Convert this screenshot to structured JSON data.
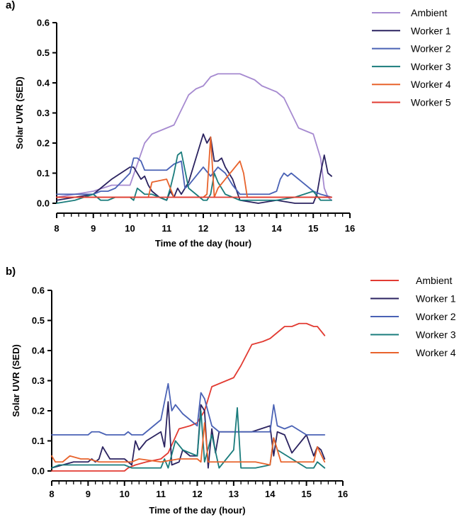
{
  "chart_data": [
    {
      "type": "line",
      "panel_label": "a)",
      "xlabel": "Time of the day (hour)",
      "ylabel": "Solar UVR (SED)",
      "xlim": [
        8,
        16
      ],
      "ylim": [
        0,
        0.6
      ],
      "x_ticks": [
        "8",
        "9",
        "10",
        "11",
        "12",
        "13",
        "14",
        "15",
        "16"
      ],
      "y_ticks": [
        "0.0",
        "0.1",
        "0.2",
        "0.3",
        "0.4",
        "0.5",
        "0.6"
      ],
      "legend_position": "top-right",
      "series": [
        {
          "name": "Ambient",
          "color": "#a68ad0",
          "x": [
            8.0,
            9.0,
            9.5,
            10.0,
            10.2,
            10.4,
            10.6,
            10.8,
            11.0,
            11.2,
            11.4,
            11.6,
            11.8,
            12.0,
            12.2,
            12.4,
            12.6,
            12.8,
            13.0,
            13.2,
            13.4,
            13.6,
            13.8,
            14.0,
            14.2,
            14.4,
            14.6,
            14.8,
            15.0,
            15.2,
            15.3,
            15.4,
            15.5
          ],
          "y": [
            0.02,
            0.04,
            0.06,
            0.06,
            0.13,
            0.2,
            0.23,
            0.24,
            0.25,
            0.26,
            0.31,
            0.36,
            0.38,
            0.39,
            0.42,
            0.43,
            0.43,
            0.43,
            0.43,
            0.42,
            0.41,
            0.39,
            0.38,
            0.37,
            0.35,
            0.3,
            0.25,
            0.24,
            0.23,
            0.15,
            0.05,
            0.02,
            0.01
          ]
        },
        {
          "name": "Worker 1",
          "color": "#2b2360",
          "x": [
            8.0,
            8.5,
            9.0,
            9.3,
            9.5,
            10.0,
            10.1,
            10.2,
            10.3,
            10.4,
            10.5,
            10.6,
            10.8,
            11.0,
            11.1,
            11.2,
            11.3,
            11.4,
            11.6,
            11.8,
            12.0,
            12.1,
            12.2,
            12.3,
            12.4,
            12.5,
            12.6,
            12.8,
            13.0,
            13.5,
            14.0,
            14.5,
            15.0,
            15.1,
            15.2,
            15.3,
            15.4,
            15.5
          ],
          "y": [
            0.01,
            0.02,
            0.03,
            0.06,
            0.08,
            0.12,
            0.12,
            0.1,
            0.08,
            0.09,
            0.06,
            0.04,
            0.02,
            0.01,
            0.04,
            0.02,
            0.05,
            0.03,
            0.07,
            0.15,
            0.23,
            0.2,
            0.22,
            0.14,
            0.14,
            0.15,
            0.12,
            0.08,
            0.01,
            0.0,
            0.01,
            0.0,
            0.0,
            0.03,
            0.1,
            0.16,
            0.1,
            0.09
          ]
        },
        {
          "name": "Worker 2",
          "color": "#4a62b5",
          "x": [
            8.0,
            9.0,
            9.2,
            9.4,
            9.6,
            10.0,
            10.1,
            10.2,
            10.3,
            10.4,
            10.6,
            11.0,
            11.2,
            11.4,
            11.5,
            11.6,
            12.0,
            12.2,
            12.4,
            12.6,
            12.8,
            13.0,
            13.2,
            13.5,
            13.8,
            14.0,
            14.1,
            14.2,
            14.3,
            14.4,
            14.6,
            15.0,
            15.2,
            15.5
          ],
          "y": [
            0.03,
            0.03,
            0.04,
            0.04,
            0.05,
            0.1,
            0.15,
            0.15,
            0.14,
            0.11,
            0.11,
            0.11,
            0.13,
            0.14,
            0.05,
            0.06,
            0.12,
            0.09,
            0.12,
            0.1,
            0.06,
            0.03,
            0.03,
            0.03,
            0.03,
            0.04,
            0.08,
            0.1,
            0.09,
            0.1,
            0.08,
            0.04,
            0.03,
            0.02
          ]
        },
        {
          "name": "Worker 3",
          "color": "#1a7c7c",
          "x": [
            8.0,
            8.5,
            9.0,
            9.1,
            9.2,
            9.4,
            9.6,
            10.0,
            10.1,
            10.2,
            10.3,
            10.4,
            10.6,
            11.0,
            11.1,
            11.2,
            11.3,
            11.4,
            11.6,
            12.0,
            12.1,
            12.2,
            12.3,
            12.4,
            12.6,
            12.8,
            13.0,
            13.5,
            14.0,
            14.5,
            15.0,
            15.2,
            15.5
          ],
          "y": [
            0.0,
            0.01,
            0.03,
            0.02,
            0.01,
            0.01,
            0.02,
            0.02,
            0.01,
            0.05,
            0.04,
            0.03,
            0.03,
            0.01,
            0.05,
            0.1,
            0.16,
            0.17,
            0.05,
            0.01,
            0.01,
            0.03,
            0.1,
            0.07,
            0.03,
            0.02,
            0.01,
            0.01,
            0.01,
            0.02,
            0.04,
            0.01,
            0.01
          ]
        },
        {
          "name": "Worker 4",
          "color": "#e8632c",
          "x": [
            8.0,
            10.5,
            10.6,
            11.0,
            11.1,
            11.2,
            12.0,
            12.1,
            12.2,
            12.3,
            12.4,
            13.0,
            13.1,
            13.2,
            15.0,
            15.5
          ],
          "y": [
            0.02,
            0.02,
            0.07,
            0.08,
            0.05,
            0.02,
            0.02,
            0.03,
            0.22,
            0.02,
            0.05,
            0.14,
            0.1,
            0.02,
            0.02,
            0.02
          ]
        },
        {
          "name": "Worker 5",
          "color": "#e23b32",
          "x": [
            8.0,
            15.5
          ],
          "y": [
            0.02,
            0.02
          ]
        }
      ]
    },
    {
      "type": "line",
      "panel_label": "b)",
      "xlabel": "Time of the day (hour)",
      "ylabel": "Solar UVR (SED)",
      "xlim": [
        8,
        16
      ],
      "ylim": [
        0,
        0.6
      ],
      "x_ticks": [
        "8",
        "9",
        "10",
        "11",
        "12",
        "13",
        "14",
        "15",
        "16"
      ],
      "y_ticks": [
        "0.0",
        "0.1",
        "0.2",
        "0.3",
        "0.4",
        "0.5",
        "0.6"
      ],
      "legend_position": "top-right",
      "series": [
        {
          "name": "Ambient",
          "color": "#e23b32",
          "x": [
            8.0,
            10.0,
            10.1,
            10.3,
            10.6,
            11.0,
            11.2,
            11.5,
            11.8,
            12.0,
            12.2,
            12.4,
            12.6,
            12.8,
            13.0,
            13.2,
            13.5,
            13.8,
            14.0,
            14.2,
            14.4,
            14.6,
            14.8,
            15.0,
            15.2,
            15.3,
            15.5
          ],
          "y": [
            0.0,
            0.0,
            0.01,
            0.02,
            0.03,
            0.04,
            0.06,
            0.14,
            0.15,
            0.16,
            0.2,
            0.28,
            0.29,
            0.3,
            0.31,
            0.35,
            0.42,
            0.43,
            0.44,
            0.46,
            0.48,
            0.48,
            0.49,
            0.49,
            0.48,
            0.48,
            0.45
          ]
        },
        {
          "name": "Worker 1",
          "color": "#2b2360",
          "x": [
            8.0,
            8.3,
            8.6,
            9.0,
            9.1,
            9.2,
            9.3,
            9.4,
            9.6,
            10.0,
            10.2,
            10.3,
            10.4,
            10.6,
            11.0,
            11.1,
            11.2,
            11.3,
            11.5,
            11.6,
            11.8,
            12.0,
            12.1,
            12.2,
            12.3,
            12.4,
            12.5,
            12.6,
            13.0,
            13.5,
            14.0,
            14.1,
            14.2,
            14.4,
            14.6,
            15.0,
            15.2,
            15.3,
            15.4,
            15.5
          ],
          "y": [
            0.01,
            0.02,
            0.03,
            0.03,
            0.04,
            0.03,
            0.04,
            0.08,
            0.04,
            0.04,
            0.02,
            0.1,
            0.07,
            0.1,
            0.13,
            0.08,
            0.23,
            0.02,
            0.03,
            0.07,
            0.05,
            0.05,
            0.22,
            0.2,
            0.01,
            0.14,
            0.06,
            0.13,
            0.13,
            0.13,
            0.15,
            0.05,
            0.13,
            0.12,
            0.06,
            0.12,
            0.05,
            0.08,
            0.07,
            0.04
          ]
        },
        {
          "name": "Worker 2",
          "color": "#4a62b5",
          "x": [
            8.0,
            9.0,
            9.1,
            9.3,
            9.5,
            10.0,
            10.1,
            10.2,
            10.5,
            11.0,
            11.2,
            11.3,
            11.4,
            11.6,
            11.8,
            12.0,
            12.1,
            12.2,
            12.4,
            12.6,
            13.0,
            13.5,
            14.0,
            14.1,
            14.2,
            14.4,
            14.6,
            15.0,
            15.5
          ],
          "y": [
            0.12,
            0.12,
            0.13,
            0.13,
            0.12,
            0.12,
            0.13,
            0.12,
            0.12,
            0.17,
            0.29,
            0.2,
            0.22,
            0.19,
            0.17,
            0.15,
            0.26,
            0.24,
            0.15,
            0.13,
            0.13,
            0.13,
            0.13,
            0.22,
            0.15,
            0.14,
            0.15,
            0.12,
            0.12
          ]
        },
        {
          "name": "Worker 3",
          "color": "#1a7c7c",
          "x": [
            8.0,
            8.2,
            8.4,
            9.0,
            9.5,
            10.0,
            10.2,
            11.0,
            11.1,
            11.2,
            11.4,
            11.6,
            12.0,
            12.1,
            12.2,
            12.4,
            12.6,
            13.0,
            13.1,
            13.2,
            13.6,
            14.0,
            14.1,
            14.2,
            14.6,
            15.0,
            15.2,
            15.3,
            15.5
          ],
          "y": [
            0.01,
            0.02,
            0.02,
            0.02,
            0.02,
            0.02,
            0.01,
            0.01,
            0.04,
            0.01,
            0.1,
            0.07,
            0.05,
            0.2,
            0.03,
            0.12,
            0.01,
            0.07,
            0.21,
            0.01,
            0.01,
            0.02,
            0.11,
            0.07,
            0.04,
            0.01,
            0.01,
            0.03,
            0.01
          ]
        },
        {
          "name": "Worker 4",
          "color": "#e8632c",
          "x": [
            8.0,
            8.1,
            8.3,
            8.5,
            8.8,
            9.0,
            9.3,
            9.5,
            10.0,
            10.2,
            10.4,
            11.0,
            11.5,
            12.0,
            12.1,
            12.2,
            12.3,
            12.4,
            13.0,
            13.2,
            13.4,
            13.6,
            14.0,
            14.1,
            14.3,
            14.5,
            15.0,
            15.2,
            15.3,
            15.5
          ],
          "y": [
            0.05,
            0.03,
            0.03,
            0.05,
            0.04,
            0.04,
            0.03,
            0.03,
            0.03,
            0.03,
            0.04,
            0.03,
            0.04,
            0.04,
            0.03,
            0.16,
            0.03,
            0.03,
            0.03,
            0.03,
            0.03,
            0.03,
            0.02,
            0.11,
            0.03,
            0.03,
            0.03,
            0.03,
            0.08,
            0.03
          ]
        }
      ]
    }
  ]
}
